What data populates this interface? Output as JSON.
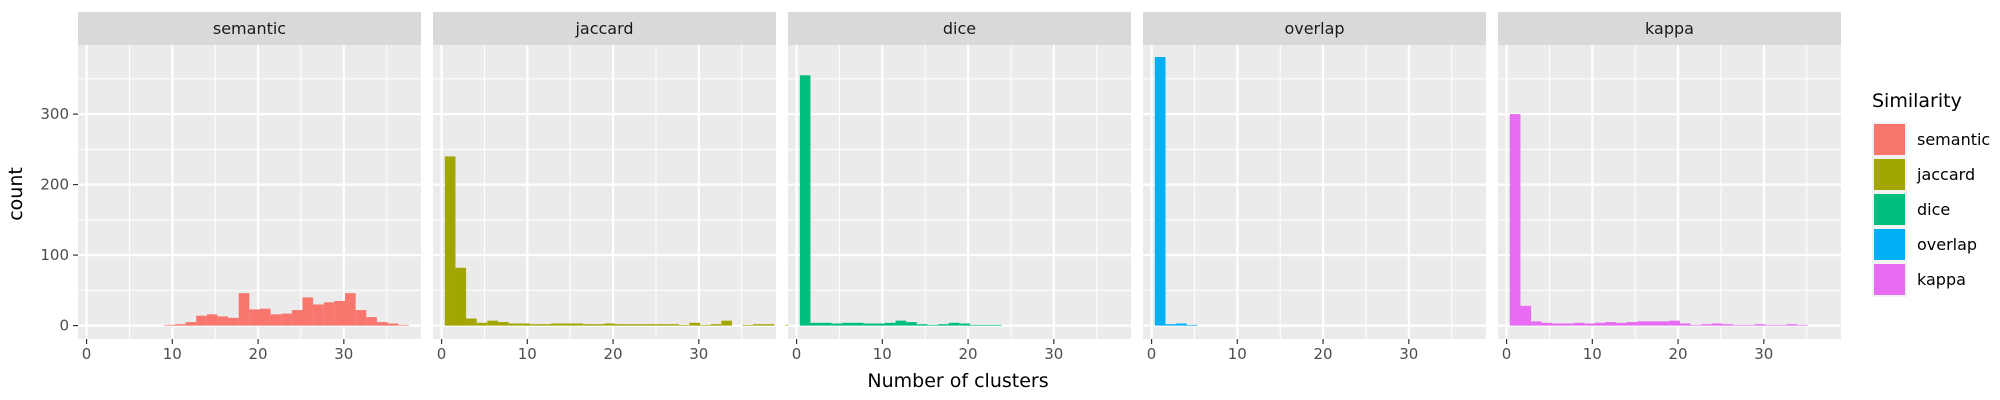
{
  "chart_data": {
    "type": "bar",
    "subtype": "faceted-histogram",
    "title": "",
    "xlabel": "Number of clusters",
    "ylabel": "count",
    "xlim": [
      -1,
      39
    ],
    "ylim": [
      -19,
      398
    ],
    "xticks": [
      0,
      10,
      20,
      30
    ],
    "yticks": [
      0,
      100,
      200,
      300
    ],
    "bin_width": 1.24,
    "bin_start": 0.38,
    "grid": true,
    "legend": {
      "title": "Similarity",
      "placement": "right",
      "entries": [
        "semantic",
        "jaccard",
        "dice",
        "overlap",
        "kappa"
      ]
    },
    "colors": {
      "semantic": "#F8766D",
      "jaccard": "#A3A500",
      "dice": "#00BF7D",
      "overlap": "#00B0F6",
      "kappa": "#E76BF3"
    },
    "series": [
      {
        "name": "semantic",
        "values": [
          0,
          0,
          0,
          0,
          0,
          0,
          0,
          1,
          2,
          5,
          14,
          16,
          13,
          11,
          46,
          23,
          24,
          16,
          17,
          22,
          40,
          30,
          33,
          35,
          46,
          22,
          12,
          5,
          3,
          1
        ]
      },
      {
        "name": "jaccard",
        "values": [
          240,
          82,
          10,
          4,
          7,
          5,
          3,
          3,
          2,
          2,
          3,
          3,
          3,
          2,
          2,
          3,
          2,
          2,
          2,
          2,
          2,
          2,
          1,
          4,
          1,
          2,
          7,
          0,
          1,
          2,
          2,
          0,
          1,
          1
        ]
      },
      {
        "name": "dice",
        "values": [
          355,
          4,
          4,
          3,
          4,
          4,
          3,
          3,
          4,
          7,
          5,
          2,
          1,
          2,
          4,
          3,
          1,
          1,
          1,
          0,
          0,
          0,
          0,
          0,
          0,
          0,
          0,
          0,
          0,
          0
        ]
      },
      {
        "name": "overlap",
        "values": [
          381,
          2,
          3,
          1,
          0,
          0,
          0,
          0,
          0,
          0,
          0,
          0,
          0,
          0,
          0,
          0,
          0,
          0,
          0,
          0,
          0,
          0,
          0,
          0,
          0,
          0,
          0,
          0,
          0,
          0
        ]
      },
      {
        "name": "kappa",
        "values": [
          300,
          28,
          6,
          4,
          3,
          3,
          4,
          3,
          4,
          5,
          4,
          5,
          6,
          6,
          6,
          7,
          3,
          1,
          2,
          3,
          2,
          1,
          1,
          2,
          1,
          1,
          2,
          1,
          0,
          0
        ]
      }
    ]
  }
}
